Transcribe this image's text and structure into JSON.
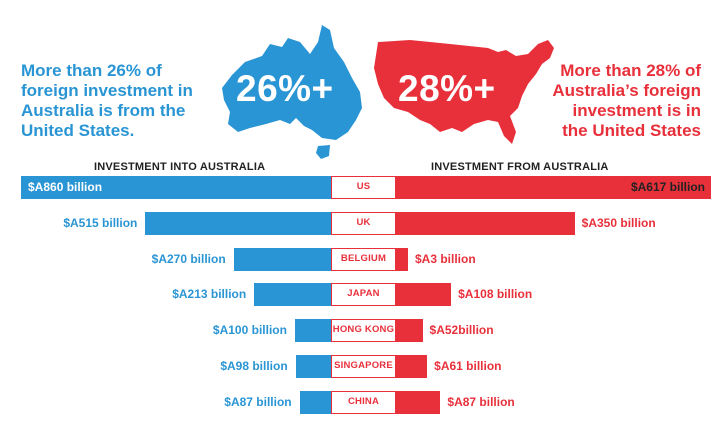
{
  "header": {
    "left_text": "More than 26% of foreign investment in Australia is from the United States.",
    "right_text": "More than 28% of Australia’s foreign investment is in the United States",
    "left_stat": "26%+",
    "right_stat": "28%+"
  },
  "colors": {
    "australia_blue": "#2a95d4",
    "usa_red": "#e8303b"
  },
  "icons": {
    "left_map": "australia-map-icon",
    "right_map": "usa-map-icon"
  },
  "chart_data": {
    "type": "bar",
    "categories": [
      "US",
      "UK",
      "BELGIUM",
      "JAPAN",
      "HONG KONG",
      "SINGAPORE",
      "CHINA"
    ],
    "series": [
      {
        "name": "INVESTMENT INTO AUSTRALIA",
        "values": [
          860,
          515,
          270,
          213,
          100,
          98,
          87
        ],
        "labels": [
          "$A860 billion",
          "$A515 billion",
          "$A270 billion",
          "$A213 billion",
          "$A100 billion",
          "$A98 billion",
          "$A87 billion"
        ]
      },
      {
        "name": "INVESTMENT FROM AUSTRALIA",
        "values": [
          617,
          350,
          3,
          108,
          52,
          61,
          87
        ],
        "labels": [
          "$A617 billion",
          "$A350 billion",
          "$A3 billion",
          "$A108 billion",
          "$A52billion",
          "$A61 billion",
          "$A87 billion"
        ]
      }
    ],
    "xlabel": "",
    "ylabel": ""
  }
}
